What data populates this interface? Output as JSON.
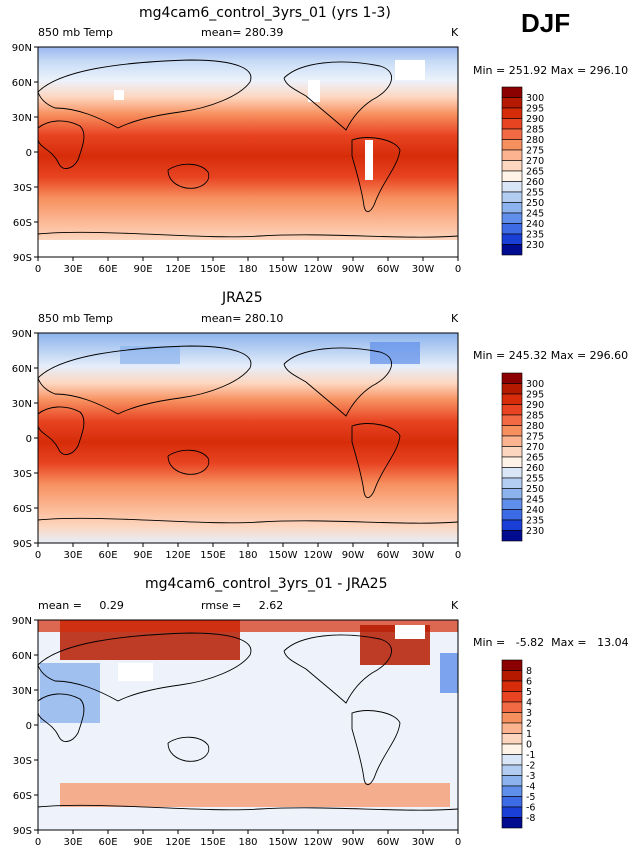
{
  "season": "DJF",
  "panels": [
    {
      "title": "mg4cam6_control_3yrs_01 (yrs 1-3)",
      "left_label": "850 mb Temp",
      "center_label": "mean= 280.39",
      "units": "K",
      "minmax": "Min = 251.92  Max = 296.10",
      "colorbar": {
        "labels": [
          "300",
          "295",
          "290",
          "285",
          "280",
          "275",
          "270",
          "265",
          "260",
          "255",
          "250",
          "245",
          "240",
          "235",
          "230"
        ],
        "colors": [
          "#8b0000",
          "#b51a00",
          "#d62c0a",
          "#e84422",
          "#f26a44",
          "#f7905f",
          "#fbb48f",
          "#fdd6bf",
          "#fff2e6",
          "#d9e6f7",
          "#b3cdf2",
          "#8cb3ee",
          "#5f8fea",
          "#3d6be6",
          "#1a3fd6",
          "#000c8f"
        ]
      }
    },
    {
      "title": "JRA25",
      "left_label": "850 mb Temp",
      "center_label": "mean= 280.10",
      "units": "K",
      "minmax": "Min = 245.32  Max = 296.60",
      "colorbar": {
        "labels": [
          "300",
          "295",
          "290",
          "285",
          "280",
          "275",
          "270",
          "265",
          "260",
          "255",
          "250",
          "245",
          "240",
          "235",
          "230"
        ],
        "colors": [
          "#8b0000",
          "#b51a00",
          "#d62c0a",
          "#e84422",
          "#f26a44",
          "#f7905f",
          "#fbb48f",
          "#fdd6bf",
          "#fff2e6",
          "#d9e6f7",
          "#b3cdf2",
          "#8cb3ee",
          "#5f8fea",
          "#3d6be6",
          "#1a3fd6",
          "#000c8f"
        ]
      }
    },
    {
      "title": "mg4cam6_control_3yrs_01 - JRA25",
      "left_label": "mean =     0.29",
      "center_label": "rmse =     2.62",
      "units": "K",
      "minmax": "Min =   -5.82  Max =   13.04",
      "colorbar": {
        "labels": [
          "8",
          "6",
          "5",
          "4",
          "3",
          "2",
          "1",
          "0",
          "-1",
          "-2",
          "-3",
          "-4",
          "-5",
          "-6",
          "-8"
        ],
        "colors": [
          "#8b0000",
          "#b51a00",
          "#d62c0a",
          "#e84422",
          "#f26a44",
          "#f7905f",
          "#fbb48f",
          "#fdd6bf",
          "#fff2e6",
          "#d9e6f7",
          "#b3cdf2",
          "#8cb3ee",
          "#5f8fea",
          "#3d6be6",
          "#1a3fd6",
          "#000c8f"
        ]
      }
    }
  ],
  "lat_ticks": [
    "90N",
    "60N",
    "30N",
    "0",
    "30S",
    "60S",
    "90S"
  ],
  "lon_ticks": [
    "0",
    "30E",
    "60E",
    "90E",
    "120E",
    "150E",
    "180",
    "150W",
    "120W",
    "90W",
    "60W",
    "30W",
    "0"
  ]
}
